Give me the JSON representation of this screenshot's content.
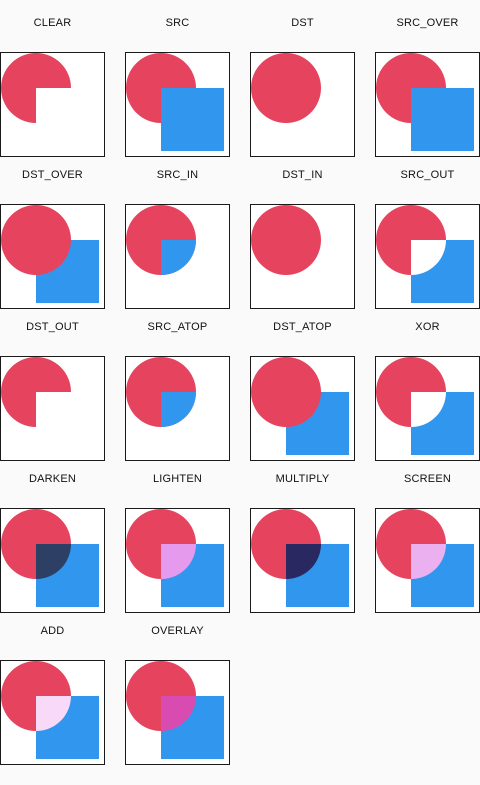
{
  "colors": {
    "dst_circle": "#E6435F",
    "src_square": "#3197EE",
    "tile_background": "#FFFFFF",
    "tile_border": "#1A1A1A",
    "page_background": "#FAFAFA"
  },
  "modes": [
    {
      "label": "CLEAR",
      "mode": "clear"
    },
    {
      "label": "SRC",
      "mode": "src"
    },
    {
      "label": "DST",
      "mode": "dst"
    },
    {
      "label": "SRC_OVER",
      "mode": "src_over"
    },
    {
      "label": "DST_OVER",
      "mode": "dst_over"
    },
    {
      "label": "SRC_IN",
      "mode": "src_in"
    },
    {
      "label": "DST_IN",
      "mode": "dst_in"
    },
    {
      "label": "SRC_OUT",
      "mode": "src_out"
    },
    {
      "label": "DST_OUT",
      "mode": "dst_out"
    },
    {
      "label": "SRC_ATOP",
      "mode": "src_atop"
    },
    {
      "label": "DST_ATOP",
      "mode": "dst_atop"
    },
    {
      "label": "XOR",
      "mode": "xor"
    },
    {
      "label": "DARKEN",
      "mode": "darken"
    },
    {
      "label": "LIGHTEN",
      "mode": "lighten"
    },
    {
      "label": "MULTIPLY",
      "mode": "multiply"
    },
    {
      "label": "SCREEN",
      "mode": "screen"
    },
    {
      "label": "ADD",
      "mode": "add"
    },
    {
      "label": "OVERLAY",
      "mode": "overlay"
    }
  ],
  "overlap_colors": {
    "darken": "#2E3F65",
    "lighten": "#E69AEE",
    "multiply": "#2A2860",
    "screen": "#EAB0F0",
    "add": "#F8DAF8",
    "overlay": "#D84BB0"
  }
}
